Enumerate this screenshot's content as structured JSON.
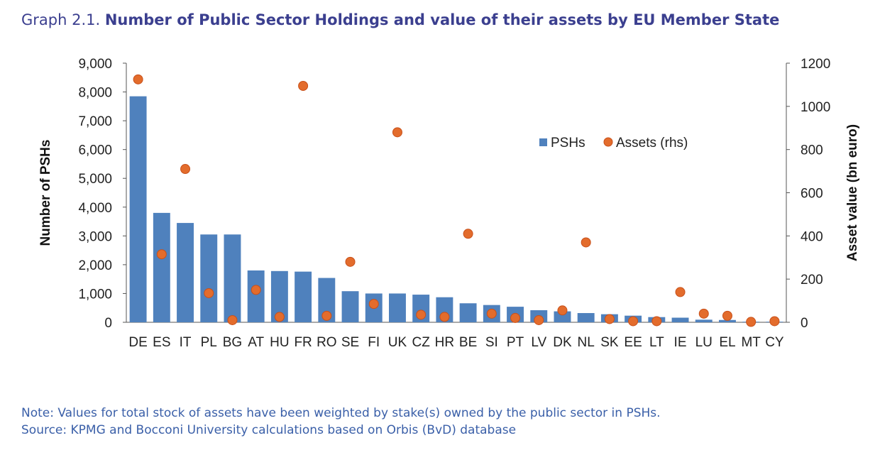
{
  "header": {
    "prefix": "Graph 2.1.",
    "title": "Number of Public Sector Holdings and value of their assets by EU Member State"
  },
  "footer": {
    "note": "Note: Values for total stock of assets have been weighted by stake(s) owned by the public sector in PSHs.",
    "source": "Source: KPMG and Bocconi University calculations based on Orbis (BvD) database"
  },
  "colors": {
    "bar": "#4f81bd",
    "marker": "#e36c2c",
    "markerEdge": "#c8501a",
    "title": "#3b3f8f",
    "note": "#3a5fa8"
  },
  "chart_data": {
    "type": "bar",
    "categories": [
      "DE",
      "ES",
      "IT",
      "PL",
      "BG",
      "AT",
      "HU",
      "FR",
      "RO",
      "SE",
      "FI",
      "UK",
      "CZ",
      "HR",
      "BE",
      "SI",
      "PT",
      "LV",
      "DK",
      "NL",
      "SK",
      "EE",
      "LT",
      "IE",
      "LU",
      "EL",
      "MT",
      "CY"
    ],
    "series": [
      {
        "name": "PSHs",
        "type": "bar",
        "axis": "left",
        "values": [
          7850,
          3800,
          3450,
          3050,
          3050,
          1800,
          1780,
          1760,
          1540,
          1080,
          1000,
          1000,
          960,
          870,
          660,
          600,
          540,
          420,
          380,
          320,
          280,
          230,
          180,
          160,
          90,
          80,
          20,
          20
        ]
      },
      {
        "name": "Assets  (rhs)",
        "type": "scatter",
        "axis": "right",
        "values": [
          1125,
          315,
          710,
          135,
          10,
          150,
          25,
          1095,
          30,
          280,
          85,
          880,
          35,
          25,
          410,
          40,
          20,
          10,
          55,
          370,
          15,
          5,
          5,
          140,
          40,
          30,
          2,
          5
        ]
      }
    ],
    "ylabel": "Number of PSHs",
    "y2label": "Asset value  (bn euro)",
    "ylim": [
      0,
      9000
    ],
    "y2lim": [
      0,
      1200
    ],
    "yticks": [
      "0",
      "1,000",
      "2,000",
      "3,000",
      "4,000",
      "5,000",
      "6,000",
      "7,000",
      "8,000",
      "9,000"
    ],
    "y2ticks": [
      "0",
      "200",
      "400",
      "600",
      "800",
      "1000",
      "1200"
    ],
    "legend": "top-right inside",
    "grid": false
  }
}
